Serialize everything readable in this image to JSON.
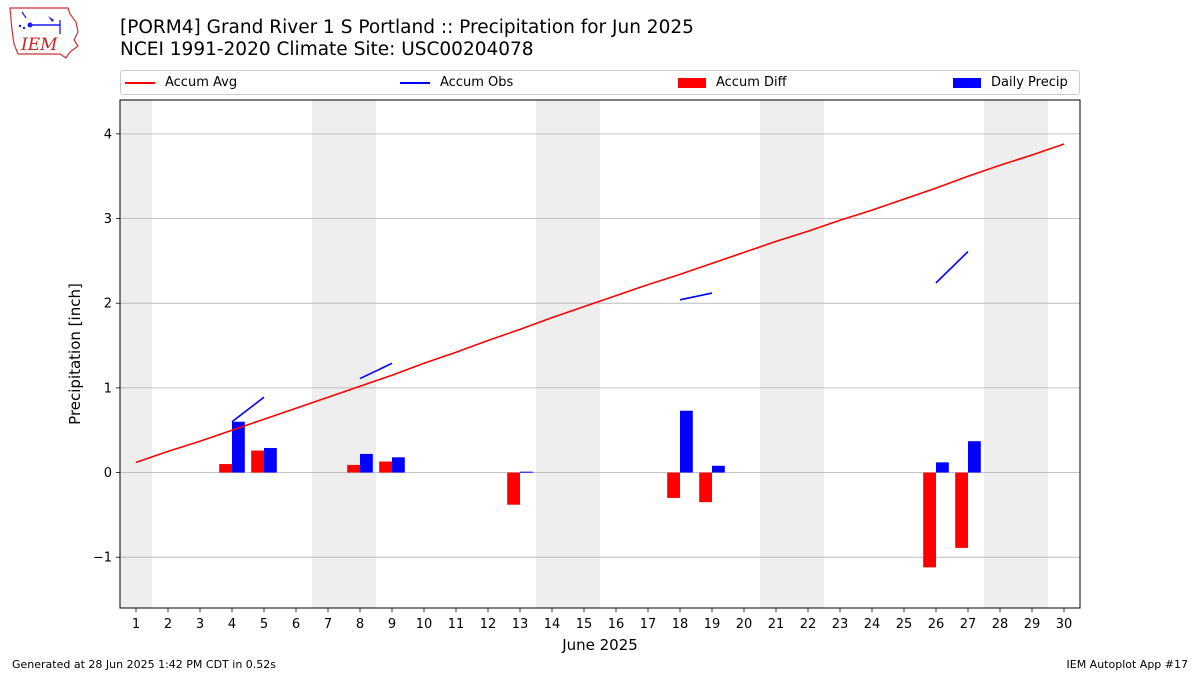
{
  "header": {
    "title_line1": "[PORM4] Grand River 1 S Portland :: Precipitation for Jun 2025",
    "title_line2": "NCEI 1991-2020 Climate Site: USC00204078",
    "logo_text": "IEM"
  },
  "footer": {
    "left": "Generated at 28 Jun 2025 1:42 PM CDT in 0.52s",
    "right": "IEM Autoplot App #17"
  },
  "colors": {
    "accum_avg": "#ff0000",
    "accum_obs": "#0000ff",
    "accum_diff": "#ff0000",
    "daily_precip": "#0000ff",
    "weekend_shade": "#eeeeee",
    "grid": "#b0b0b0"
  },
  "chart_data": {
    "type": "bar",
    "xlabel": "June 2025",
    "ylabel": "Precipitation [inch]",
    "xlim": [
      0.5,
      30.5
    ],
    "ylim": [
      -1.6,
      4.4
    ],
    "x": [
      1,
      2,
      3,
      4,
      5,
      6,
      7,
      8,
      9,
      10,
      11,
      12,
      13,
      14,
      15,
      16,
      17,
      18,
      19,
      20,
      21,
      22,
      23,
      24,
      25,
      26,
      27,
      28,
      29,
      30
    ],
    "x_tick_labels": [
      "1",
      "2",
      "3",
      "4",
      "5",
      "6",
      "7",
      "8",
      "9",
      "10",
      "11",
      "12",
      "13",
      "14",
      "15",
      "16",
      "17",
      "18",
      "19",
      "20",
      "21",
      "22",
      "23",
      "24",
      "25",
      "26",
      "27",
      "28",
      "29",
      "30"
    ],
    "y_ticks": [
      -1,
      0,
      1,
      2,
      3,
      4
    ],
    "y_tick_labels": [
      "−1",
      "0",
      "1",
      "2",
      "3",
      "4"
    ],
    "grid": "horizontal",
    "shaded_days": [
      [
        1,
        1
      ],
      [
        7,
        8
      ],
      [
        14,
        15
      ],
      [
        21,
        22
      ],
      [
        28,
        29
      ]
    ],
    "legend": {
      "placement": "top",
      "entries": [
        {
          "label": "Accum Avg",
          "kind": "line",
          "color": "#ff0000"
        },
        {
          "label": "Accum Obs",
          "kind": "line",
          "color": "#0000ff"
        },
        {
          "label": "Accum Diff",
          "kind": "bar",
          "color": "#ff0000"
        },
        {
          "label": "Daily Precip",
          "kind": "bar",
          "color": "#0000ff"
        }
      ]
    },
    "series": [
      {
        "name": "Accum Avg",
        "kind": "line",
        "values": [
          0.12,
          0.25,
          0.37,
          0.5,
          0.63,
          0.76,
          0.89,
          1.02,
          1.15,
          1.29,
          1.42,
          1.56,
          1.69,
          1.83,
          1.96,
          2.09,
          2.22,
          2.34,
          2.47,
          2.6,
          2.73,
          2.85,
          2.98,
          3.1,
          3.23,
          3.36,
          3.5,
          3.63,
          3.75,
          3.88
        ]
      },
      {
        "name": "Accum Obs",
        "kind": "segments",
        "segments": [
          [
            [
              4,
              0.6
            ],
            [
              5,
              0.89
            ]
          ],
          [
            [
              8,
              1.11
            ],
            [
              9,
              1.29
            ]
          ],
          [
            [
              18,
              2.04
            ],
            [
              19,
              2.12
            ]
          ],
          [
            [
              26,
              2.24
            ],
            [
              27,
              2.61
            ]
          ]
        ]
      },
      {
        "name": "Accum Diff",
        "kind": "bar",
        "x": [
          4,
          5,
          8,
          9,
          13,
          18,
          19,
          26,
          27
        ],
        "values": [
          0.1,
          0.26,
          0.09,
          0.13,
          -0.38,
          -0.3,
          -0.35,
          -1.12,
          -0.89
        ]
      },
      {
        "name": "Daily Precip",
        "kind": "bar",
        "x": [
          4,
          5,
          8,
          9,
          13,
          18,
          19,
          26,
          27
        ],
        "values": [
          0.6,
          0.29,
          0.22,
          0.18,
          0.01,
          0.73,
          0.08,
          0.12,
          0.37
        ]
      }
    ]
  }
}
